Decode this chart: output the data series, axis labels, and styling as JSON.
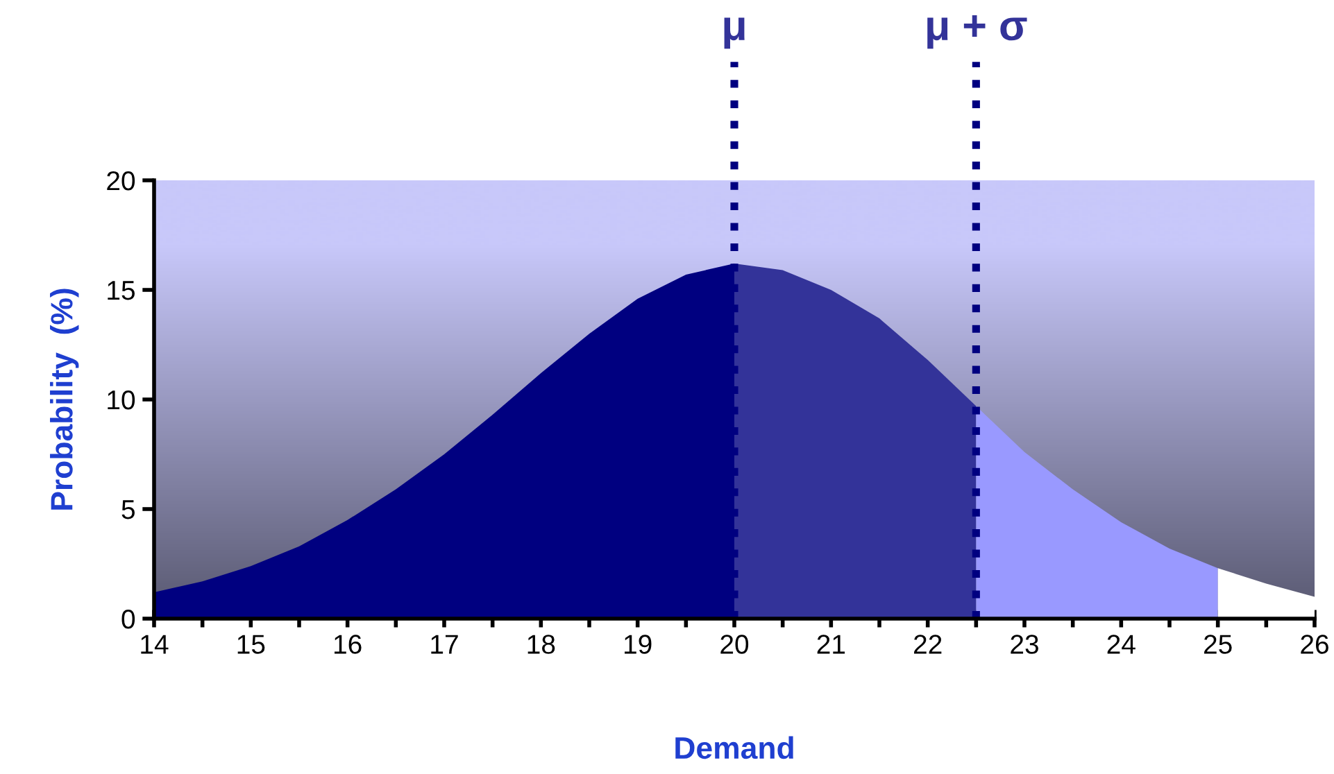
{
  "chart_data": {
    "type": "area",
    "xlabel": "Demand",
    "ylabel": "Probability  (%)",
    "xlim": [
      14,
      26
    ],
    "ylim": [
      0,
      20
    ],
    "xticks": [
      14,
      {
        "value": 14.5,
        "label": null
      },
      15,
      {
        "value": 15.5,
        "label": null
      },
      16,
      {
        "value": 16.5,
        "label": null
      },
      17,
      {
        "value": 17.5,
        "label": null
      },
      18,
      {
        "value": 18.5,
        "label": null
      },
      19,
      {
        "value": 19.5,
        "label": null
      },
      20,
      {
        "value": 20.5,
        "label": null
      },
      21,
      {
        "value": 21.5,
        "label": null
      },
      22,
      {
        "value": 22.5,
        "label": null
      },
      23,
      {
        "value": 23.5,
        "label": null
      },
      24,
      {
        "value": 24.5,
        "label": null
      },
      25,
      {
        "value": 25.5,
        "label": null
      },
      26
    ],
    "yticks": [
      0,
      5,
      10,
      15,
      20
    ],
    "grid": false,
    "legend": false,
    "series": [
      {
        "color": "#000080",
        "x": [
          14,
          14.5,
          15,
          15.5,
          16,
          16.5,
          17,
          17.5,
          18,
          18.5,
          19,
          19.5,
          20
        ],
        "values": [
          1.2,
          1.7,
          2.4,
          3.3,
          4.5,
          5.9,
          7.5,
          9.3,
          11.2,
          13.0,
          14.6,
          15.7,
          16.2
        ]
      },
      {
        "color": "#333399",
        "x": [
          20,
          20.5,
          21,
          21.5,
          22,
          22.5
        ],
        "values": [
          16.2,
          15.9,
          15.0,
          13.7,
          11.8,
          9.7
        ]
      },
      {
        "color": "#9999ff",
        "x": [
          22.5,
          23,
          23.5,
          24,
          24.5,
          25
        ],
        "values": [
          9.7,
          7.6,
          5.9,
          4.4,
          3.2,
          2.3
        ]
      },
      {
        "color": "#ffffff",
        "x": [
          25,
          25.5,
          26
        ],
        "values": [
          2.3,
          1.6,
          1.0
        ]
      }
    ],
    "ref_lines": [
      {
        "axis": "x",
        "value": 20,
        "label": "μ",
        "color": "#000080",
        "line_style": "dotted"
      },
      {
        "axis": "x",
        "value": 22.5,
        "label": "μ + σ",
        "color": "#000080",
        "line_style": "dotted"
      }
    ]
  }
}
